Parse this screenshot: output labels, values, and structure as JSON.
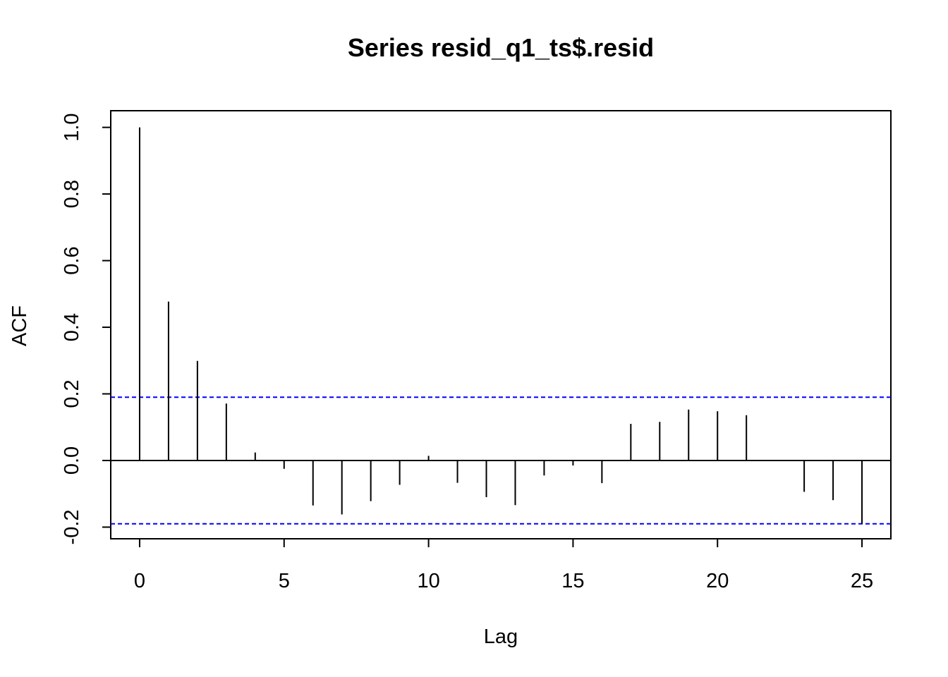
{
  "chart_data": {
    "type": "bar",
    "title": "Series  resid_q1_ts$.resid",
    "xlabel": "Lag",
    "ylabel": "ACF",
    "xlim": [
      -1,
      26
    ],
    "ylim": [
      -0.235,
      1.05
    ],
    "x_ticks": [
      0,
      5,
      10,
      15,
      20,
      25
    ],
    "y_ticks": [
      -0.2,
      0.0,
      0.2,
      0.4,
      0.6,
      0.8,
      1.0
    ],
    "y_tick_labels": [
      "-0.2",
      "0.0",
      "0.2",
      "0.4",
      "0.6",
      "0.8",
      "1.0"
    ],
    "x": [
      0,
      1,
      2,
      3,
      4,
      5,
      6,
      7,
      8,
      9,
      10,
      11,
      12,
      13,
      14,
      15,
      16,
      17,
      18,
      19,
      20,
      21,
      22,
      23,
      24,
      25
    ],
    "values": [
      1.0,
      0.477,
      0.299,
      0.171,
      0.024,
      -0.025,
      -0.135,
      -0.162,
      -0.122,
      -0.073,
      0.014,
      -0.067,
      -0.11,
      -0.134,
      -0.045,
      -0.015,
      -0.068,
      0.11,
      0.116,
      0.153,
      0.148,
      0.136,
      0.0,
      -0.094,
      -0.119,
      -0.19
    ],
    "confidence_bound": 0.19,
    "bound_color": "#0000FF",
    "grid": false
  }
}
